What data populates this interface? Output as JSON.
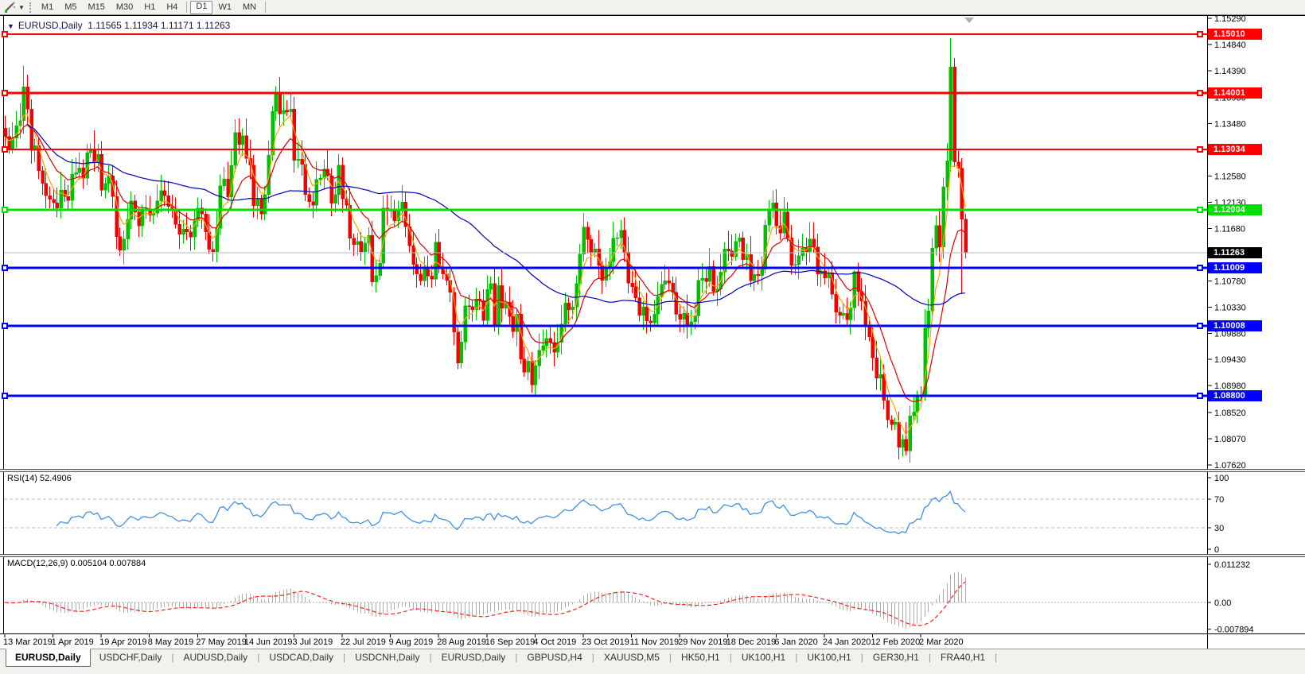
{
  "icons": {
    "symbol_dropdown": "▼",
    "tool_caret": "▼",
    "shift_marker": "▼"
  },
  "toolbar": {
    "timeframes": [
      {
        "label": "M1",
        "active": false
      },
      {
        "label": "M5",
        "active": false
      },
      {
        "label": "M15",
        "active": false
      },
      {
        "label": "M30",
        "active": false
      },
      {
        "label": "H1",
        "active": false
      },
      {
        "label": "H4",
        "active": false
      },
      {
        "label": "D1",
        "active": true
      },
      {
        "label": "W1",
        "active": false
      },
      {
        "label": "MN",
        "active": false
      }
    ]
  },
  "chart_header": {
    "symbol_label": "EURUSD,Daily",
    "ohlc_text": "1.11565 1.11934 1.11171 1.11263"
  },
  "colors": {
    "up": "#00C000",
    "down": "#F40000",
    "ma_fast": "#FFA500",
    "ma_mid": "#DC0000",
    "ma_slow": "#0000B8",
    "rsi": "#4390DF",
    "macd_hist": "#ABABAB",
    "macd_signal": "#FF2020",
    "current_line": "#B9B9B9",
    "current_box": "#000000",
    "level_dash": "#BBBBBB",
    "axis_text": "#000000"
  },
  "chart_data": {
    "type": "candlestick",
    "symbol": "EURUSD",
    "timeframe": "Daily",
    "ohlc_display": {
      "open": "1.11565",
      "high": "1.11934",
      "low": "1.11171",
      "close": "1.11263"
    },
    "first_open": 1.134,
    "closes": [
      1.1326,
      1.1305,
      1.1323,
      1.1344,
      1.1353,
      1.1411,
      1.1373,
      1.1302,
      1.131,
      1.1267,
      1.1245,
      1.1224,
      1.1218,
      1.1212,
      1.1203,
      1.1234,
      1.1223,
      1.1216,
      1.1261,
      1.1264,
      1.1272,
      1.1254,
      1.1298,
      1.1305,
      1.1282,
      1.1295,
      1.1234,
      1.1245,
      1.1258,
      1.1223,
      1.1154,
      1.1131,
      1.115,
      1.1184,
      1.1215,
      1.1196,
      1.1172,
      1.12,
      1.1201,
      1.1191,
      1.1194,
      1.1215,
      1.1233,
      1.1224,
      1.1206,
      1.1201,
      1.1175,
      1.1158,
      1.1167,
      1.1162,
      1.1153,
      1.1181,
      1.1203,
      1.1193,
      1.1162,
      1.1132,
      1.1128,
      1.1168,
      1.1241,
      1.1253,
      1.1222,
      1.1276,
      1.1333,
      1.1312,
      1.1327,
      1.1288,
      1.1277,
      1.1207,
      1.1218,
      1.1193,
      1.1226,
      1.1294,
      1.1369,
      1.1399,
      1.1365,
      1.1371,
      1.1368,
      1.1373,
      1.1285,
      1.1287,
      1.1278,
      1.1226,
      1.1214,
      1.1208,
      1.1252,
      1.1254,
      1.127,
      1.1258,
      1.1211,
      1.1226,
      1.1277,
      1.1219,
      1.1208,
      1.1151,
      1.114,
      1.1146,
      1.1128,
      1.1143,
      1.1156,
      1.1076,
      1.1087,
      1.1108,
      1.1203,
      1.1199,
      1.1199,
      1.1181,
      1.1199,
      1.1213,
      1.1171,
      1.1138,
      1.1106,
      1.109,
      1.1078,
      1.1099,
      1.1086,
      1.1081,
      1.1144,
      1.1101,
      1.109,
      1.1079,
      1.1058,
      1.099,
      1.0937,
      1.0973,
      1.1035,
      1.1034,
      1.1028,
      1.1047,
      1.1044,
      1.101,
      1.1063,
      1.1073,
      1.1003,
      1.107,
      1.1031,
      1.1041,
      1.1017,
      1.0991,
      1.1021,
      1.0944,
      1.0921,
      1.094,
      1.0899,
      1.0932,
      1.0959,
      1.0966,
      1.0979,
      1.0972,
      1.0955,
      1.0972,
      1.1004,
      1.104,
      1.1028,
      1.1033,
      1.1073,
      1.1124,
      1.117,
      1.1149,
      1.1126,
      1.1133,
      1.1105,
      1.1079,
      1.1099,
      1.1111,
      1.1151,
      1.1152,
      1.1165,
      1.1127,
      1.1074,
      1.1068,
      1.1049,
      1.1019,
      1.1033,
      1.1009,
      1.1006,
      1.1021,
      1.1051,
      1.1072,
      1.1078,
      1.1074,
      1.1058,
      1.1021,
      1.1012,
      1.1022,
      1.1001,
      1.1008,
      1.1018,
      1.1079,
      1.1082,
      1.1077,
      1.1103,
      1.106,
      1.1064,
      1.1093,
      1.1133,
      1.1129,
      1.112,
      1.1146,
      1.1152,
      1.1114,
      1.1123,
      1.1078,
      1.1089,
      1.1087,
      1.1098,
      1.1174,
      1.1199,
      1.1212,
      1.1172,
      1.116,
      1.1196,
      1.1152,
      1.1105,
      1.1106,
      1.1121,
      1.1134,
      1.1128,
      1.115,
      1.1136,
      1.109,
      1.1095,
      1.1083,
      1.1092,
      1.1055,
      1.1024,
      1.1019,
      1.1022,
      1.1011,
      1.1032,
      1.1094,
      1.106,
      1.1043,
      1.1,
      1.0982,
      1.0946,
      1.0911,
      1.0917,
      1.0873,
      1.0839,
      1.0831,
      1.0835,
      1.0792,
      1.0806,
      1.0786,
      1.0846,
      1.0853,
      1.0881,
      1.088,
      1.0997,
      1.1026,
      1.1134,
      1.1173,
      1.1136,
      1.1239,
      1.1284,
      1.1445,
      1.1282,
      1.1271,
      1.1184,
      1.1126
    ],
    "wick_overrides": {
      "0": {
        "h": 1.1362
      },
      "5": {
        "h": 1.1448
      },
      "73": {
        "h": 1.1412
      },
      "122": {
        "l": 1.0926
      },
      "143": {
        "l": 1.0879
      },
      "229": {
        "h": 1.1096
      },
      "243": {
        "l": 1.0778
      },
      "255": {
        "h": 1.1495
      },
      "258": {
        "l": 1.1055
      },
      "259": {
        "h": 1.1193,
        "l": 1.1117
      }
    },
    "x_labels": [
      {
        "text": "13 Mar 2019",
        "bar": 0
      },
      {
        "text": "1 Apr 2019",
        "bar": 13
      },
      {
        "text": "19 Apr 2019",
        "bar": 26
      },
      {
        "text": "8 May 2019",
        "bar": 39
      },
      {
        "text": "27 May 2019",
        "bar": 52
      },
      {
        "text": "14 Jun 2019",
        "bar": 65
      },
      {
        "text": "3 Jul 2019",
        "bar": 78
      },
      {
        "text": "22 Jul 2019",
        "bar": 91
      },
      {
        "text": "9 Aug 2019",
        "bar": 104
      },
      {
        "text": "28 Aug 2019",
        "bar": 117
      },
      {
        "text": "16 Sep 2019",
        "bar": 130
      },
      {
        "text": "4 Oct 2019",
        "bar": 143
      },
      {
        "text": "23 Oct 2019",
        "bar": 156
      },
      {
        "text": "11 Nov 2019",
        "bar": 169
      },
      {
        "text": "29 Nov 2019",
        "bar": 182
      },
      {
        "text": "18 Dec 2019",
        "bar": 195
      },
      {
        "text": "6 Jan 2020",
        "bar": 208
      },
      {
        "text": "24 Jan 2020",
        "bar": 221
      },
      {
        "text": "12 Feb 2020",
        "bar": 234
      },
      {
        "text": "2 Mar 2020",
        "bar": 247
      }
    ],
    "y_ticks": [
      "1.15290",
      "1.14840",
      "1.14390",
      "1.13930",
      "1.13480",
      "1.13030",
      "1.12580",
      "1.12130",
      "1.11680",
      "1.11230",
      "1.10780",
      "1.10330",
      "1.09880",
      "1.09430",
      "1.08980",
      "1.08520",
      "1.08070",
      "1.07620"
    ],
    "hlines": [
      {
        "price": 1.1501,
        "label": "1.15010",
        "color": "#FF0000",
        "width": 2
      },
      {
        "price": 1.14001,
        "label": "1.14001",
        "color": "#FF0000",
        "width": 3
      },
      {
        "price": 1.13034,
        "label": "1.13034",
        "color": "#FF0000",
        "width": 2
      },
      {
        "price": 1.12004,
        "label": "1.12004",
        "color": "#00DF00",
        "width": 3
      },
      {
        "price": 1.11009,
        "label": "1.11009",
        "color": "#0000FF",
        "width": 3
      },
      {
        "price": 1.10008,
        "label": "1.10008",
        "color": "#0000FF",
        "width": 3
      },
      {
        "price": 1.088,
        "label": "1.08800",
        "color": "#0000FF",
        "width": 3
      }
    ],
    "current_price": {
      "value": 1.11263,
      "label": "1.11263"
    },
    "moving_averages": [
      {
        "period": 5,
        "type": "ema",
        "color_key": "ma_fast"
      },
      {
        "period": 13,
        "type": "ema",
        "color_key": "ma_mid"
      },
      {
        "period": 55,
        "type": "sma",
        "color_key": "ma_slow"
      }
    ],
    "indicators": {
      "rsi": {
        "label": "RSI(14) 52.4906",
        "period": 14,
        "level_labels": [
          "100",
          "70",
          "30",
          "0"
        ],
        "levels": [
          100,
          70,
          30,
          0
        ],
        "dashed_levels": [
          70,
          30
        ]
      },
      "macd": {
        "label": "MACD(12,26,9) 0.005104 0.007884",
        "fast": 12,
        "slow": 26,
        "signal": 9,
        "scale_max_label": "0.011232",
        "scale_zero_label": "0.00",
        "scale_min_label": "-0.007894"
      }
    }
  },
  "tabs": {
    "items": [
      {
        "label": "EURUSD,Daily",
        "active": true
      },
      {
        "label": "USDCHF,Daily",
        "active": false
      },
      {
        "label": "AUDUSD,Daily",
        "active": false
      },
      {
        "label": "USDCAD,Daily",
        "active": false
      },
      {
        "label": "USDCNH,Daily",
        "active": false
      },
      {
        "label": "EURUSD,Daily",
        "active": false
      },
      {
        "label": "GBPUSD,H4",
        "active": false
      },
      {
        "label": "XAUUSD,M5",
        "active": false
      },
      {
        "label": "HK50,H1",
        "active": false
      },
      {
        "label": "UK100,H1",
        "active": false
      },
      {
        "label": "UK100,H1",
        "active": false
      },
      {
        "label": "GER30,H1",
        "active": false
      },
      {
        "label": "FRA40,H1",
        "active": false
      }
    ]
  }
}
